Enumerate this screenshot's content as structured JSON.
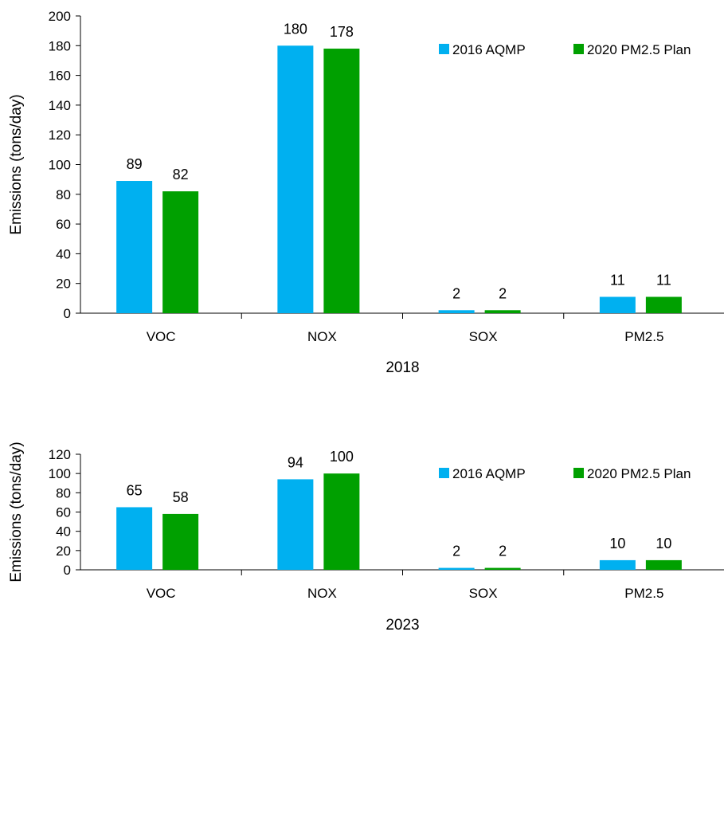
{
  "colors": {
    "series_2016": "#00B0F0",
    "series_2020": "#00A000",
    "axis": "#000000",
    "background": "#ffffff"
  },
  "chart_data": [
    {
      "type": "bar",
      "title": "",
      "xlabel": "2018",
      "ylabel": "Emissions (tons/day)",
      "categories": [
        "VOC",
        "NOX",
        "SOX",
        "PM2.5"
      ],
      "ylim": [
        0,
        200
      ],
      "yticks": [
        0,
        20,
        40,
        60,
        80,
        100,
        120,
        140,
        160,
        180,
        200
      ],
      "grid": false,
      "legend_position": "top-right",
      "series": [
        {
          "name": "2016 AQMP",
          "color": "#00B0F0",
          "values": [
            89,
            180,
            2,
            11
          ],
          "labels": [
            "89",
            "180",
            "2",
            "11"
          ]
        },
        {
          "name": "2020 PM2.5 Plan",
          "color": "#00A000",
          "values": [
            82,
            178,
            2,
            11
          ],
          "labels": [
            "82",
            "178",
            "2",
            "11"
          ]
        }
      ]
    },
    {
      "type": "bar",
      "title": "",
      "xlabel": "2023",
      "ylabel": "Emissions (tons/day)",
      "categories": [
        "VOC",
        "NOX",
        "SOX",
        "PM2.5"
      ],
      "ylim": [
        0,
        120
      ],
      "yticks": [
        0,
        20,
        40,
        60,
        80,
        100,
        120
      ],
      "grid": false,
      "legend_position": "top-right",
      "series": [
        {
          "name": "2016 AQMP",
          "color": "#00B0F0",
          "values": [
            65,
            94,
            2,
            10
          ],
          "labels": [
            "65",
            "94",
            "2",
            "10"
          ]
        },
        {
          "name": "2020 PM2.5 Plan",
          "color": "#00A000",
          "values": [
            58,
            100,
            2,
            10
          ],
          "labels": [
            "58",
            "100",
            "2",
            "10"
          ]
        }
      ]
    }
  ]
}
